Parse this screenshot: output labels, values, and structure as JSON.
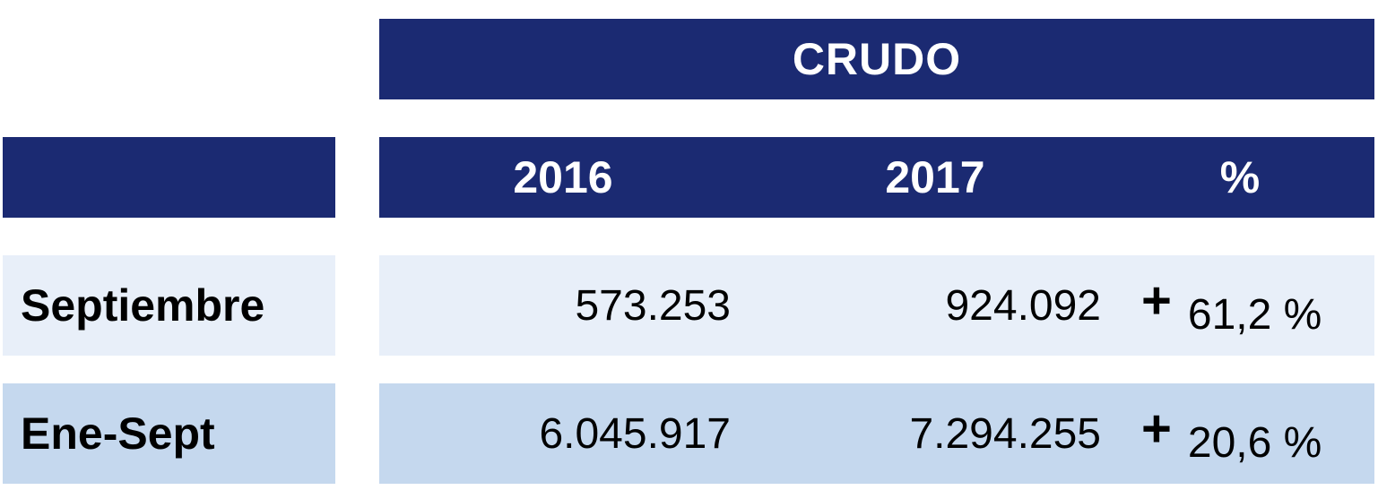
{
  "table": {
    "title": "CRUDO",
    "columns": [
      "2016",
      "2017",
      "%"
    ],
    "rows": [
      {
        "label": "Septiembre",
        "v2016": "573.253",
        "v2017": "924.092",
        "sign": "+",
        "pct": "61,2 %"
      },
      {
        "label": "Ene-Sept",
        "v2016": "6.045.917",
        "v2017": "7.294.255",
        "sign": "+",
        "pct": "20,6 %"
      }
    ]
  },
  "colors": {
    "header": "#1b2a72",
    "row1": "#e8eff9",
    "row2": "#c5d8ee"
  }
}
